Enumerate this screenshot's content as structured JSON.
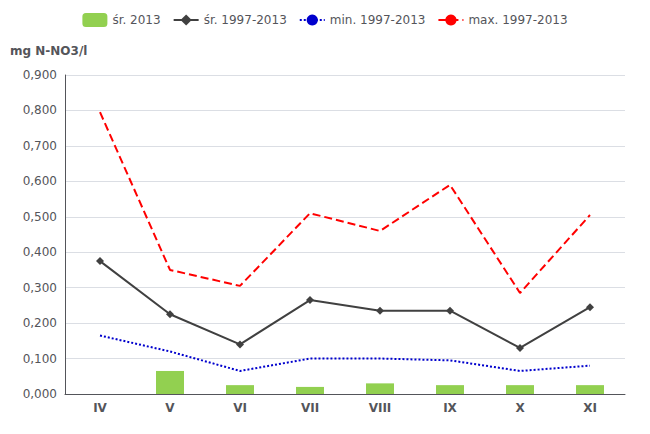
{
  "chart_data": {
    "type": "bar",
    "ylabel": "mg N-NO3/l",
    "categories": [
      "IV",
      "V",
      "VI",
      "VII",
      "VIII",
      "IX",
      "X",
      "XI"
    ],
    "series": [
      {
        "name": "śr. 2013",
        "type": "bar",
        "color": "#92d050",
        "values": [
          0.0,
          0.065,
          0.025,
          0.02,
          0.03,
          0.025,
          0.025,
          0.025
        ]
      },
      {
        "name": "śr. 1997-2013",
        "type": "line",
        "color": "#404040",
        "marker": "diamond",
        "line_style": "solid",
        "values": [
          0.375,
          0.225,
          0.14,
          0.265,
          0.235,
          0.235,
          0.13,
          0.245
        ]
      },
      {
        "name": "min. 1997-2013",
        "type": "line",
        "color": "#0000cd",
        "line_style": "dotted",
        "values": [
          0.165,
          0.12,
          0.065,
          0.1,
          0.1,
          0.095,
          0.065,
          0.08
        ]
      },
      {
        "name": "max. 1997-2013",
        "type": "line",
        "color": "#ff0000",
        "line_style": "dashed",
        "values": [
          0.795,
          0.35,
          0.305,
          0.51,
          0.46,
          0.59,
          0.285,
          0.505
        ]
      }
    ],
    "ylim": [
      0.0,
      0.9
    ],
    "yticks": [
      {
        "value": 0.0,
        "label": "0,000"
      },
      {
        "value": 0.1,
        "label": "0,100"
      },
      {
        "value": 0.2,
        "label": "0,200"
      },
      {
        "value": 0.3,
        "label": "0,300"
      },
      {
        "value": 0.4,
        "label": "0,400"
      },
      {
        "value": 0.5,
        "label": "0,500"
      },
      {
        "value": 0.6,
        "label": "0,600"
      },
      {
        "value": 0.7,
        "label": "0,700"
      },
      {
        "value": 0.8,
        "label": "0,800"
      },
      {
        "value": 0.9,
        "label": "0,900"
      }
    ],
    "grid": true,
    "legend": "top"
  }
}
